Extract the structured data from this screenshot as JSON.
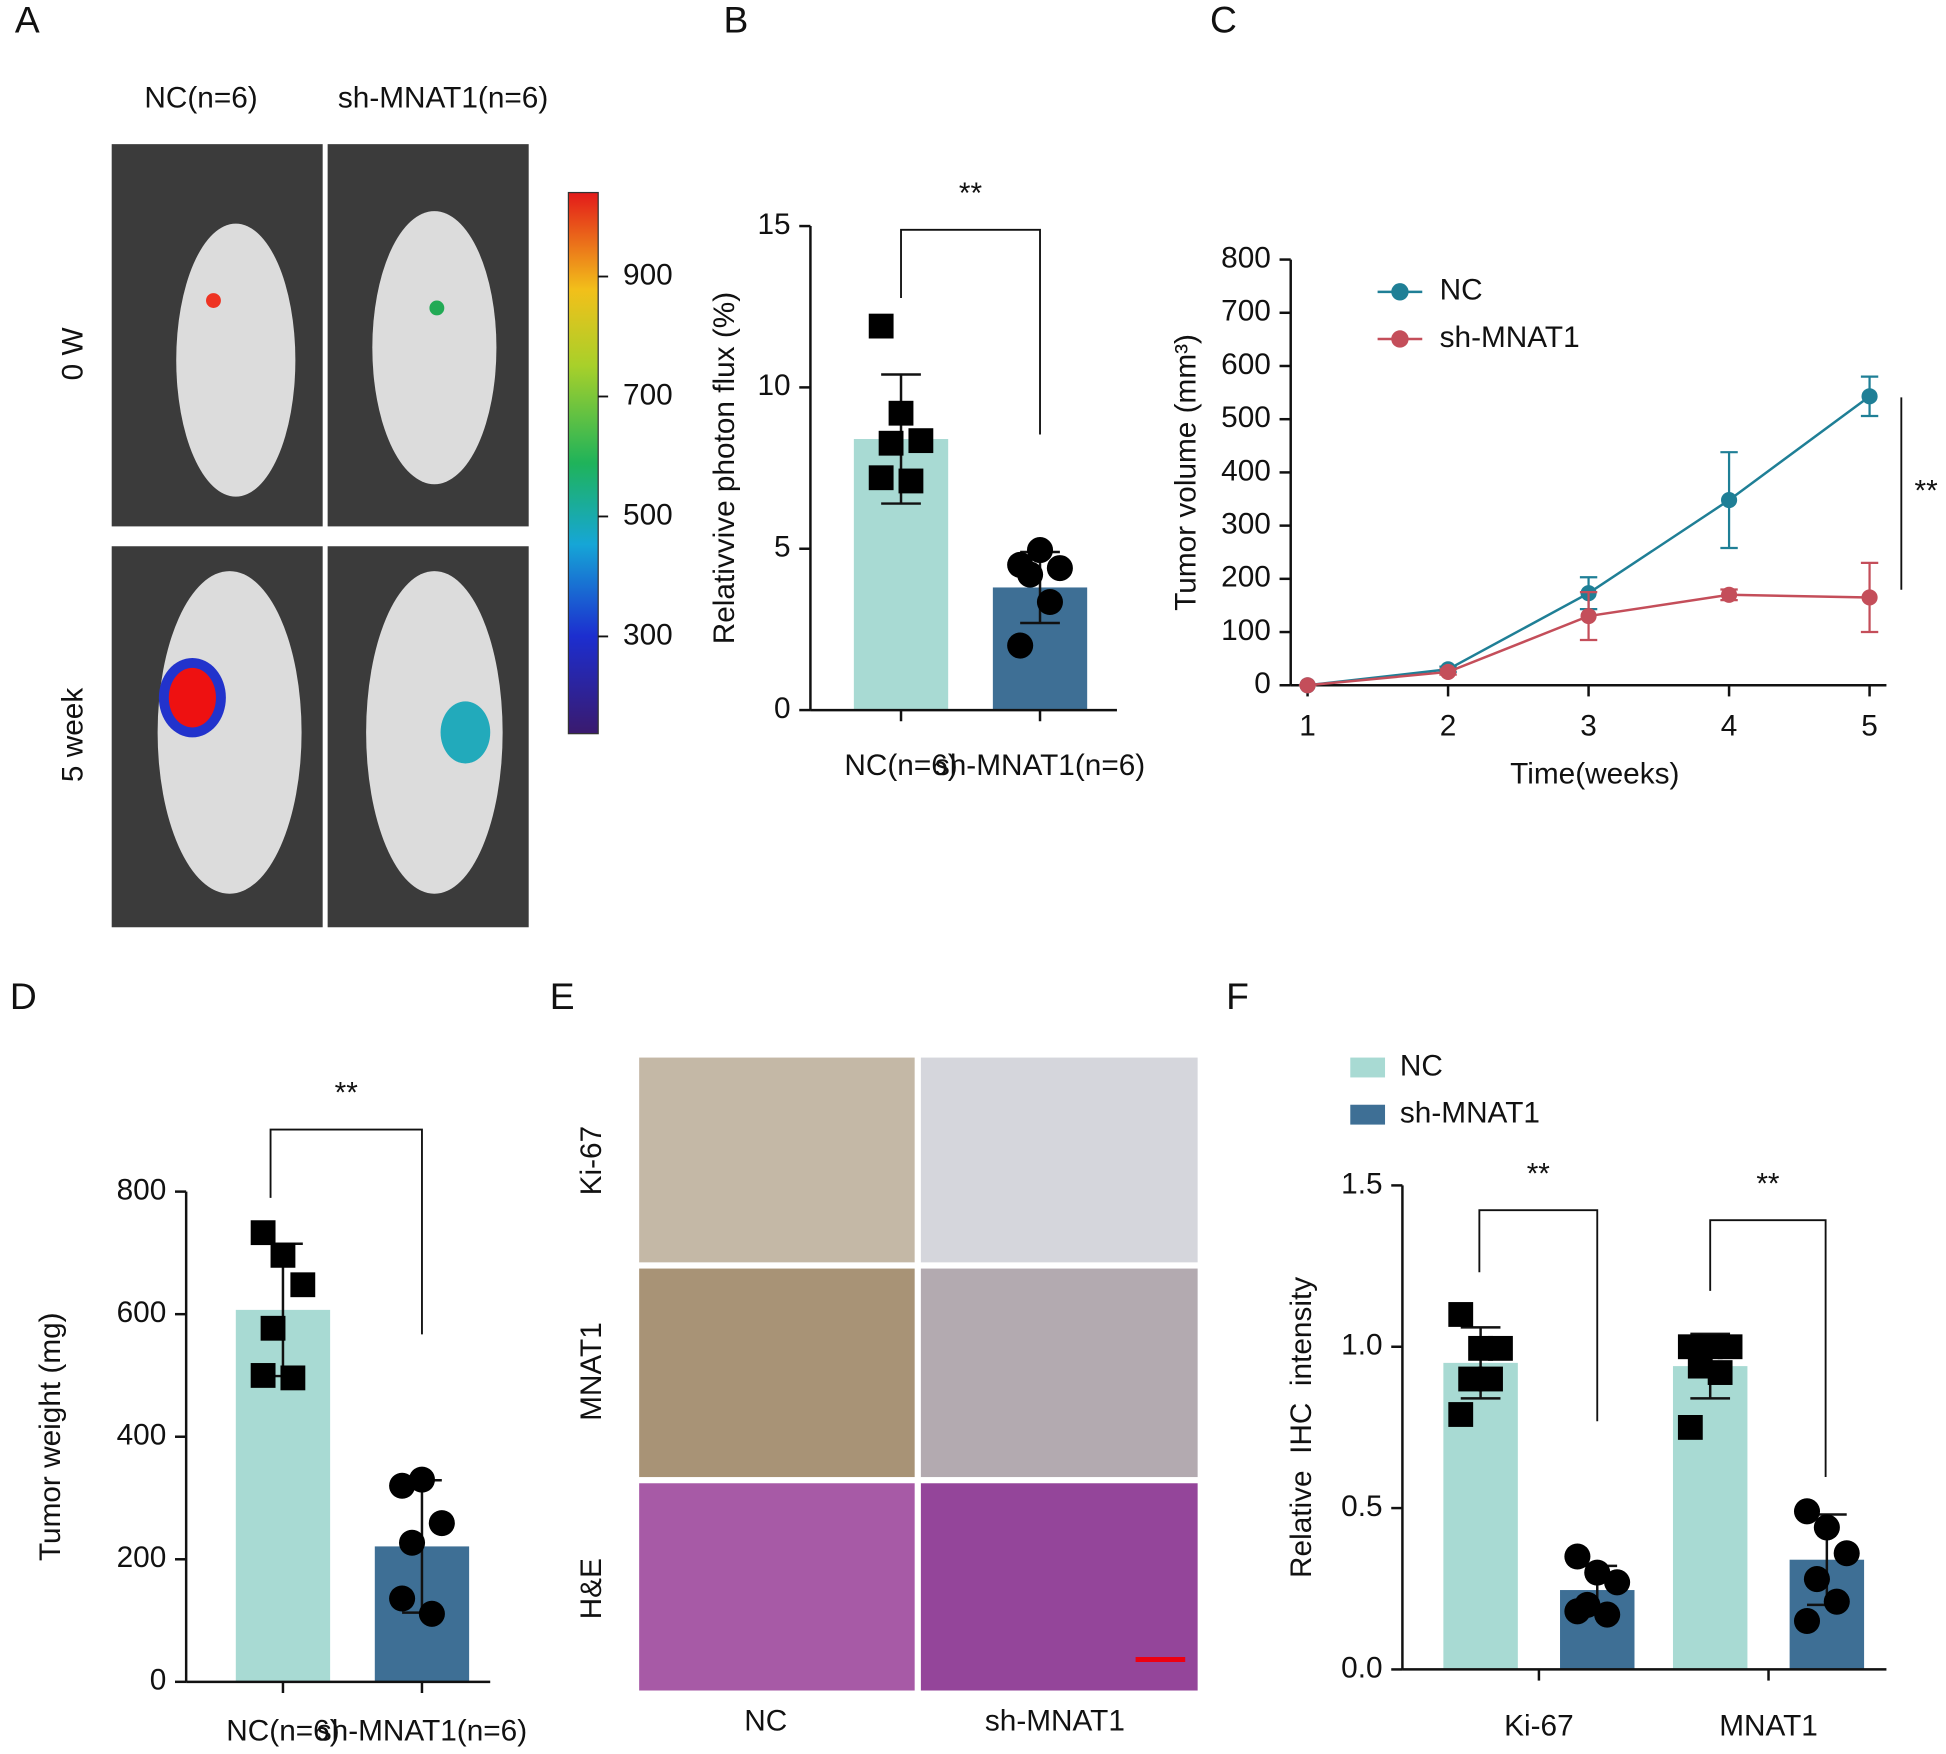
{
  "panel_labels": [
    "A",
    "B",
    "C",
    "D",
    "E",
    "F"
  ],
  "imaging": {
    "columns": [
      "NC(n=6)",
      "sh-MNAT1(n=6)"
    ],
    "rows": [
      "0 W",
      "5 week"
    ],
    "colorbar": {
      "lim": [
        140,
        1040
      ],
      "ticks": [
        300,
        500,
        700,
        900
      ]
    }
  },
  "histology": {
    "columns": [
      "NC",
      "sh-MNAT1"
    ],
    "rows": [
      "Ki-67",
      "MNAT1",
      "H&E"
    ]
  },
  "chart_data": [
    {
      "type": "bar",
      "ylabel": "Relativvive photon flux (%)",
      "categories": [
        "NC(n=6)",
        "sh-MNAT1(n=6)"
      ],
      "values": [
        8.4,
        3.8
      ],
      "errors": [
        2.0,
        1.1
      ],
      "points": [
        [
          11.9,
          9.2,
          8.35,
          8.27,
          7.1,
          7.2
        ],
        [
          4.5,
          4.96,
          4.4,
          4.2,
          3.35,
          2.0
        ]
      ],
      "colors": [
        "#a8dad3",
        "#3e6f95"
      ],
      "markers": [
        "square",
        "circle"
      ],
      "ylim": [
        0,
        15
      ],
      "yticks": [
        0,
        5,
        10,
        15
      ],
      "annotations": [
        "**"
      ]
    },
    {
      "type": "line",
      "ylabel": "Tumor volume (mm³)",
      "xlabel": "Time(weeks)",
      "x": [
        1,
        2,
        3,
        4,
        5
      ],
      "series": [
        {
          "name": "NC",
          "color": "#1f7f96",
          "values": [
            0,
            30,
            173,
            348,
            543
          ],
          "errors": [
            0,
            5,
            30,
            90,
            37
          ]
        },
        {
          "name": "sh-MNAT1",
          "color": "#c44e5a",
          "values": [
            0,
            25,
            130,
            170,
            165
          ],
          "errors": [
            0,
            5,
            45,
            10,
            65
          ]
        }
      ],
      "xlim": [
        0.88,
        5.12
      ],
      "xticks": [
        1,
        2,
        3,
        4,
        5
      ],
      "ylim": [
        0,
        800
      ],
      "yticks": [
        0,
        100,
        200,
        300,
        400,
        500,
        600,
        700,
        800
      ],
      "annotations": [
        "**"
      ]
    },
    {
      "type": "bar",
      "ylabel": "Tumor weight (mg)",
      "categories": [
        "NC(n=6)",
        "sh-MNAT1(n=6)"
      ],
      "values": [
        607,
        221
      ],
      "errors": [
        108,
        108
      ],
      "points": [
        [
          733,
          696,
          648,
          577,
          496,
          500
        ],
        [
          320,
          330,
          259,
          227,
          111,
          136
        ]
      ],
      "colors": [
        "#a8dad3",
        "#3e6f95"
      ],
      "markers": [
        "square",
        "circle"
      ],
      "ylim": [
        0,
        800
      ],
      "yticks": [
        0,
        200,
        400,
        600,
        800
      ],
      "annotations": [
        "**"
      ]
    },
    {
      "type": "bar",
      "ylabel": "Relative  IHC  intensity",
      "categories": [
        "Ki-67",
        "MNAT1"
      ],
      "series": [
        {
          "name": "NC",
          "color": "#a8dad3",
          "values": [
            0.95,
            0.94
          ],
          "errors": [
            0.11,
            0.1
          ],
          "points": [
            [
              1.1,
              0.995,
              0.995,
              0.9,
              0.9,
              0.79
            ],
            [
              1.0,
              1.0,
              1.0,
              0.94,
              0.92,
              0.75
            ]
          ]
        },
        {
          "name": "sh-MNAT1",
          "color": "#3e6f95",
          "values": [
            0.246,
            0.34
          ],
          "errors": [
            0.075,
            0.14
          ],
          "points": [
            [
              0.35,
              0.3,
              0.27,
              0.2,
              0.17,
              0.18
            ],
            [
              0.49,
              0.44,
              0.36,
              0.28,
              0.21,
              0.15
            ]
          ]
        }
      ],
      "markers": [
        "square",
        "circle"
      ],
      "ylim": [
        0,
        1.5
      ],
      "yticks": [
        {
          "value": 0,
          "label": "0.0"
        },
        0.5,
        {
          "value": 1,
          "label": "1.0"
        },
        1.5
      ],
      "annotations": [
        "**",
        "**"
      ]
    }
  ]
}
